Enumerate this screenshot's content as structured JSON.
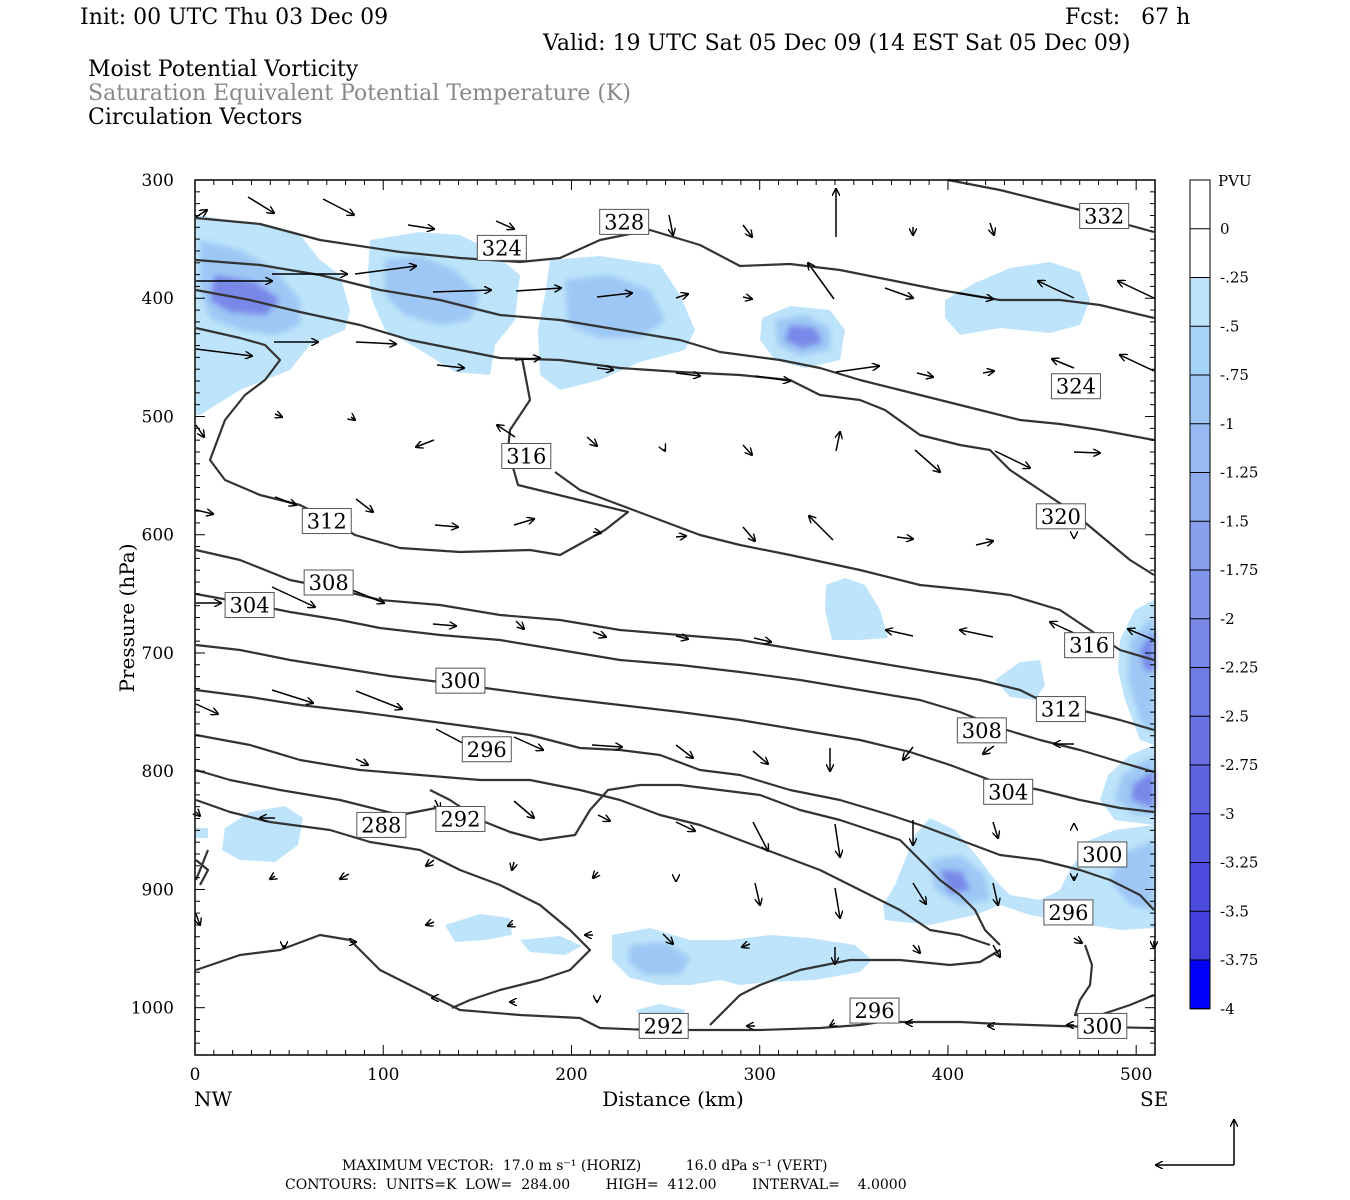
{
  "header": {
    "init": "Init: 00 UTC Thu 03 Dec 09",
    "fcst": "Fcst:   67 h",
    "valid": "Valid: 19 UTC Sat 05 Dec 09 (14 EST Sat 05 Dec 09)",
    "field1": "Moist Potential Vorticity",
    "field2": "Saturation Equivalent Potential Temperature (K)",
    "field3": "Circulation Vectors"
  },
  "footer": {
    "max_vector": "MAXIMUM VECTOR:  17.0 m s⁻¹ (HORIZ)          16.0 dPa s⁻¹ (VERT)",
    "contours": "CONTOURS:  UNITS=K  LOW=  284.00        HIGH=  412.00        INTERVAL=    4.0000"
  },
  "colors": {
    "contour": "#333333",
    "vector": "#000000"
  },
  "chart_data": {
    "type": "contour-cross-section",
    "xlabel": "Distance (km)",
    "ylabel": "Pressure (hPa)",
    "xlim": [
      0,
      510
    ],
    "ylim": [
      1040,
      300
    ],
    "x_ticks": [
      0,
      100,
      200,
      300,
      400,
      500
    ],
    "y_ticks": [
      300,
      400,
      500,
      600,
      700,
      800,
      900,
      1000
    ],
    "x_end_labels": {
      "left": "NW",
      "right": "SE"
    },
    "colorbar": {
      "unit": "PVU",
      "labels": [
        "0",
        "-.25",
        "-.5",
        "-.75",
        "-1",
        "-1.25",
        "-1.5",
        "-1.75",
        "-2",
        "-2.25",
        "-2.5",
        "-2.75",
        "-3",
        "-3.25",
        "-3.5",
        "-3.75",
        "-4"
      ],
      "colors": [
        "#ffffff",
        "#ffffff",
        "#bde4fa",
        "#a6d4f8",
        "#9ec7f5",
        "#97baf2",
        "#8faeef",
        "#88a1ec",
        "#8095ea",
        "#7888e8",
        "#707ce6",
        "#6870e4",
        "#5f63e2",
        "#5657e0",
        "#4d4ade",
        "#433edc",
        "#0000ff"
      ]
    },
    "contour_labels": [
      {
        "text": "328",
        "x": 228,
        "p": 335
      },
      {
        "text": "332",
        "x": 483,
        "p": 330
      },
      {
        "text": "324",
        "x": 163,
        "p": 357
      },
      {
        "text": "324",
        "x": 468,
        "p": 474
      },
      {
        "text": "316",
        "x": 176,
        "p": 533
      },
      {
        "text": "320",
        "x": 460,
        "p": 584
      },
      {
        "text": "312",
        "x": 70,
        "p": 588
      },
      {
        "text": "308",
        "x": 71,
        "p": 640
      },
      {
        "text": "304",
        "x": 29,
        "p": 659
      },
      {
        "text": "316",
        "x": 475,
        "p": 693
      },
      {
        "text": "300",
        "x": 141,
        "p": 723
      },
      {
        "text": "312",
        "x": 460,
        "p": 747
      },
      {
        "text": "308",
        "x": 418,
        "p": 765
      },
      {
        "text": "296",
        "x": 155,
        "p": 781
      },
      {
        "text": "304",
        "x": 432,
        "p": 817
      },
      {
        "text": "288",
        "x": 99,
        "p": 845
      },
      {
        "text": "292",
        "x": 141,
        "p": 840
      },
      {
        "text": "300",
        "x": 482,
        "p": 870
      },
      {
        "text": "296",
        "x": 464,
        "p": 919
      },
      {
        "text": "296",
        "x": 361,
        "p": 1002
      },
      {
        "text": "292",
        "x": 249,
        "p": 1015
      },
      {
        "text": "300",
        "x": 482,
        "p": 1015
      }
    ]
  }
}
